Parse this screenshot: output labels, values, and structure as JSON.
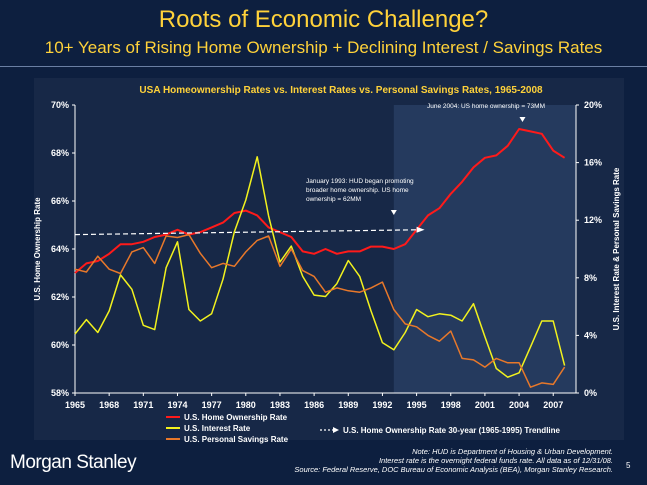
{
  "slide": {
    "title": "Roots of Economic Challenge?",
    "subtitle": "10+ Years of Rising Home Ownership + Declining Interest / Savings Rates",
    "brand": "Morgan Stanley",
    "page_number": "5",
    "notes": [
      "Note: HUD is Department of Housing & Urban Development.",
      "Interest rate is the overnight federal funds rate. All data as of 12/31/08.",
      "Source: Federal Reserve, DOC Bureau of Economic Analysis (BEA), Morgan Stanley Research."
    ]
  },
  "colors": {
    "background": "#0d1f3f",
    "title": "#ffd23a",
    "chart_title": "#ffd23a",
    "home_ownership": "#ff1a1a",
    "interest_rate": "#f2f21e",
    "savings_rate": "#e8782a",
    "trendline": "#ffffff",
    "shade": "#253a5e"
  },
  "chart_data": {
    "type": "line",
    "title": "USA Homeownership Rates vs. Interest Rates vs. Personal Savings Rates, 1965-2008",
    "ylabel": "U.S. Home Ownership Rate",
    "y2label": "U.S. Interest Rate & Personal Savings Rate",
    "ylim": [
      58,
      70
    ],
    "y2lim": [
      0,
      20
    ],
    "xlim": [
      1965,
      2009
    ],
    "x_ticks": [
      "1965",
      "1968",
      "1971",
      "1974",
      "1977",
      "1980",
      "1983",
      "1986",
      "1989",
      "1992",
      "1995",
      "1998",
      "2001",
      "2004",
      "2007"
    ],
    "y_ticks": [
      "58%",
      "60%",
      "62%",
      "64%",
      "66%",
      "68%",
      "70%"
    ],
    "y2_ticks": [
      "0%",
      "4%",
      "8%",
      "12%",
      "16%",
      "20%"
    ],
    "shaded_region": [
      1993,
      2009
    ],
    "annotations": [
      {
        "text": "June 2004: US home ownership = 73MM",
        "x": 2004.3
      },
      {
        "text": "January 1993: HUD began promoting broader home ownership. US home ownership = 62MM",
        "x": 1993.0
      }
    ],
    "legend": [
      {
        "label": "U.S. Home Ownership Rate",
        "color": "#ff1a1a"
      },
      {
        "label": "U.S. Interest Rate",
        "color": "#f2f21e"
      },
      {
        "label": "U.S. Personal Savings Rate",
        "color": "#e8782a"
      },
      {
        "label": "U.S. Home Ownership Rate 30-year (1965-1995) Trendline",
        "color": "#ffffff"
      }
    ],
    "series": [
      {
        "name": "U.S. Home Ownership Rate",
        "axis": "left",
        "points": [
          [
            1965,
            63.0
          ],
          [
            1966,
            63.4
          ],
          [
            1967,
            63.5
          ],
          [
            1968,
            63.8
          ],
          [
            1969,
            64.2
          ],
          [
            1970,
            64.2
          ],
          [
            1971,
            64.3
          ],
          [
            1972,
            64.5
          ],
          [
            1973,
            64.6
          ],
          [
            1974,
            64.8
          ],
          [
            1975,
            64.6
          ],
          [
            1976,
            64.7
          ],
          [
            1977,
            64.9
          ],
          [
            1978,
            65.1
          ],
          [
            1979,
            65.5
          ],
          [
            1980,
            65.6
          ],
          [
            1981,
            65.4
          ],
          [
            1982,
            64.9
          ],
          [
            1983,
            64.7
          ],
          [
            1984,
            64.5
          ],
          [
            1985,
            63.9
          ],
          [
            1986,
            63.8
          ],
          [
            1987,
            64.0
          ],
          [
            1988,
            63.8
          ],
          [
            1989,
            63.9
          ],
          [
            1990,
            63.9
          ],
          [
            1991,
            64.1
          ],
          [
            1992,
            64.1
          ],
          [
            1993,
            64.0
          ],
          [
            1994,
            64.2
          ],
          [
            1995,
            64.8
          ],
          [
            1996,
            65.4
          ],
          [
            1997,
            65.7
          ],
          [
            1998,
            66.3
          ],
          [
            1999,
            66.8
          ],
          [
            2000,
            67.4
          ],
          [
            2001,
            67.8
          ],
          [
            2002,
            67.9
          ],
          [
            2003,
            68.3
          ],
          [
            2004,
            69.0
          ],
          [
            2005,
            68.9
          ],
          [
            2006,
            68.8
          ],
          [
            2007,
            68.1
          ],
          [
            2008,
            67.8
          ]
        ]
      },
      {
        "name": "U.S. Interest Rate",
        "axis": "right",
        "points": [
          [
            1965,
            4.1
          ],
          [
            1966,
            5.1
          ],
          [
            1967,
            4.2
          ],
          [
            1968,
            5.7
          ],
          [
            1969,
            8.2
          ],
          [
            1970,
            7.2
          ],
          [
            1971,
            4.7
          ],
          [
            1972,
            4.4
          ],
          [
            1973,
            8.7
          ],
          [
            1974,
            10.5
          ],
          [
            1975,
            5.8
          ],
          [
            1976,
            5.0
          ],
          [
            1977,
            5.5
          ],
          [
            1978,
            7.9
          ],
          [
            1979,
            11.2
          ],
          [
            1980,
            13.4
          ],
          [
            1981,
            16.4
          ],
          [
            1982,
            12.3
          ],
          [
            1983,
            9.1
          ],
          [
            1984,
            10.2
          ],
          [
            1985,
            8.1
          ],
          [
            1986,
            6.8
          ],
          [
            1987,
            6.7
          ],
          [
            1988,
            7.6
          ],
          [
            1989,
            9.2
          ],
          [
            1990,
            8.1
          ],
          [
            1991,
            5.7
          ],
          [
            1992,
            3.5
          ],
          [
            1993,
            3.0
          ],
          [
            1994,
            4.2
          ],
          [
            1995,
            5.8
          ],
          [
            1996,
            5.3
          ],
          [
            1997,
            5.5
          ],
          [
            1998,
            5.4
          ],
          [
            1999,
            5.0
          ],
          [
            2000,
            6.2
          ],
          [
            2001,
            3.9
          ],
          [
            2002,
            1.7
          ],
          [
            2003,
            1.1
          ],
          [
            2004,
            1.4
          ],
          [
            2005,
            3.2
          ],
          [
            2006,
            5.0
          ],
          [
            2007,
            5.0
          ],
          [
            2008,
            1.9
          ]
        ]
      },
      {
        "name": "U.S. Personal Savings Rate",
        "axis": "right",
        "points": [
          [
            1965,
            8.6
          ],
          [
            1966,
            8.4
          ],
          [
            1967,
            9.5
          ],
          [
            1968,
            8.6
          ],
          [
            1969,
            8.3
          ],
          [
            1970,
            9.8
          ],
          [
            1971,
            10.1
          ],
          [
            1972,
            9.0
          ],
          [
            1973,
            10.9
          ],
          [
            1974,
            10.8
          ],
          [
            1975,
            11.0
          ],
          [
            1976,
            9.7
          ],
          [
            1977,
            8.7
          ],
          [
            1978,
            9.0
          ],
          [
            1979,
            8.8
          ],
          [
            1980,
            9.8
          ],
          [
            1981,
            10.6
          ],
          [
            1982,
            10.9
          ],
          [
            1983,
            8.8
          ],
          [
            1984,
            10.0
          ],
          [
            1985,
            8.5
          ],
          [
            1986,
            8.1
          ],
          [
            1987,
            7.0
          ],
          [
            1988,
            7.3
          ],
          [
            1989,
            7.1
          ],
          [
            1990,
            7.0
          ],
          [
            1991,
            7.3
          ],
          [
            1992,
            7.7
          ],
          [
            1993,
            5.8
          ],
          [
            1994,
            4.8
          ],
          [
            1995,
            4.6
          ],
          [
            1996,
            4.0
          ],
          [
            1997,
            3.6
          ],
          [
            1998,
            4.3
          ],
          [
            1999,
            2.4
          ],
          [
            2000,
            2.3
          ],
          [
            2001,
            1.8
          ],
          [
            2002,
            2.4
          ],
          [
            2003,
            2.1
          ],
          [
            2004,
            2.1
          ],
          [
            2005,
            0.4
          ],
          [
            2006,
            0.7
          ],
          [
            2007,
            0.6
          ],
          [
            2008,
            1.8
          ]
        ]
      },
      {
        "name": "U.S. Home Ownership Rate 30-year (1965-1995) Trendline",
        "axis": "left",
        "points": [
          [
            1965,
            64.6
          ],
          [
            1995,
            64.8
          ]
        ]
      }
    ]
  }
}
